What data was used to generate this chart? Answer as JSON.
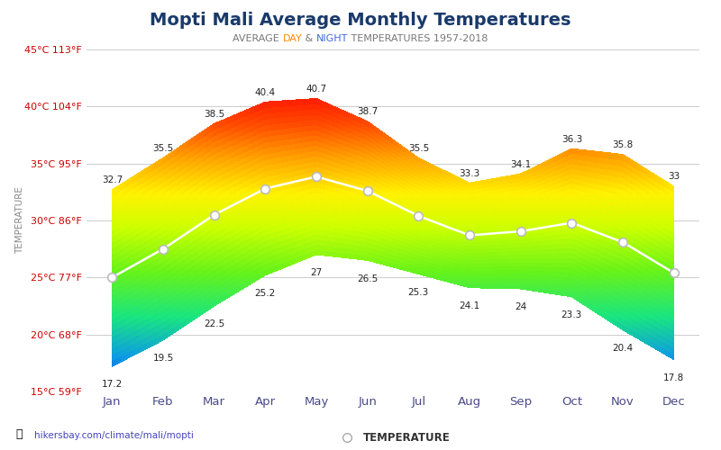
{
  "title": "Mopti Mali Average Monthly Temperatures",
  "subtitle_parts": [
    "AVERAGE ",
    "DAY",
    " & ",
    "NIGHT",
    " TEMPERATURES 1957-2018"
  ],
  "subtitle_colors": [
    "#777777",
    "#FF8C00",
    "#777777",
    "#4169E1",
    "#777777"
  ],
  "months": [
    "Jan",
    "Feb",
    "Mar",
    "Apr",
    "May",
    "Jun",
    "Jul",
    "Aug",
    "Sep",
    "Oct",
    "Nov",
    "Dec"
  ],
  "high_temps": [
    32.7,
    35.5,
    38.5,
    40.4,
    40.7,
    38.7,
    35.5,
    33.3,
    34.1,
    36.3,
    35.8,
    33.0
  ],
  "low_temps": [
    17.2,
    19.5,
    22.5,
    25.2,
    27.0,
    26.5,
    25.3,
    24.1,
    24.0,
    23.3,
    20.4,
    17.8
  ],
  "mid_temps": [
    25.0,
    27.5,
    30.5,
    32.8,
    33.85,
    32.6,
    30.4,
    28.7,
    29.05,
    29.8,
    28.1,
    25.4
  ],
  "ylim_min": 15,
  "ylim_max": 45,
  "ytick_vals": [
    15,
    20,
    25,
    30,
    35,
    40,
    45
  ],
  "ylabel_labels": [
    "15°C 59°F",
    "20°C 68°F",
    "25°C 77°F",
    "30°C 86°F",
    "35°C 95°F",
    "40°C 104°F",
    "45°C 113°F"
  ],
  "title_color": "#1a3a6b",
  "title_fontsize": 14,
  "background_color": "#ffffff",
  "watermark": "hikersbay.com/climate/mali/mopti",
  "ylabel": "TEMPERATURE",
  "color_stops": [
    [
      0.0,
      [
        0.05,
        0.15,
        0.75
      ]
    ],
    [
      0.1,
      [
        0.05,
        0.6,
        0.9
      ]
    ],
    [
      0.22,
      [
        0.1,
        0.9,
        0.5
      ]
    ],
    [
      0.35,
      [
        0.4,
        0.95,
        0.1
      ]
    ],
    [
      0.48,
      [
        0.8,
        1.0,
        0.0
      ]
    ],
    [
      0.58,
      [
        1.0,
        0.95,
        0.0
      ]
    ],
    [
      0.68,
      [
        1.0,
        0.65,
        0.0
      ]
    ],
    [
      0.78,
      [
        1.0,
        0.3,
        0.0
      ]
    ],
    [
      0.9,
      [
        1.0,
        0.0,
        0.0
      ]
    ],
    [
      1.0,
      [
        0.75,
        0.0,
        0.0
      ]
    ]
  ]
}
